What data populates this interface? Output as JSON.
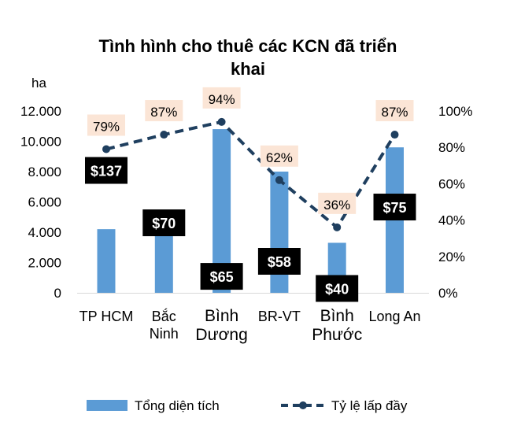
{
  "chart_data": {
    "type": "bar",
    "title_lines": [
      "Tình hình cho thuê các KCN đã triển",
      "khai"
    ],
    "ylabel_left": "ha",
    "categories": [
      {
        "lines": [
          "TP HCM"
        ],
        "big": false
      },
      {
        "lines": [
          "Bắc",
          "Ninh"
        ],
        "big": false
      },
      {
        "lines": [
          "Bình",
          "Dương"
        ],
        "big": true
      },
      {
        "lines": [
          "BR-VT"
        ],
        "big": false
      },
      {
        "lines": [
          "Bình",
          "Phước"
        ],
        "big": true
      },
      {
        "lines": [
          "Long An"
        ],
        "big": false
      }
    ],
    "series": [
      {
        "name": "Tổng diện tích",
        "type": "bar",
        "axis": "left",
        "color": "#5b9bd5",
        "values": [
          4200,
          4100,
          10800,
          8000,
          3300,
          9600
        ]
      },
      {
        "name": "Tỷ lệ lấp đầy",
        "type": "line",
        "axis": "right",
        "color": "#1f3f5f",
        "style": "dashed",
        "values": [
          0.79,
          0.87,
          0.94,
          0.62,
          0.36,
          0.87
        ]
      }
    ],
    "occupancy_labels": [
      "79%",
      "87%",
      "94%",
      "62%",
      "36%",
      "87%"
    ],
    "price_labels": [
      "$137",
      "$70",
      "$65",
      "$58",
      "$40",
      "$75"
    ],
    "price_values": [
      137,
      70,
      65,
      58,
      40,
      75
    ],
    "y_left": {
      "min": 0,
      "max": 12000,
      "ticks": [
        "0",
        "2.000",
        "4.000",
        "6.000",
        "8.000",
        "10.000",
        "12.000"
      ]
    },
    "y_right": {
      "min": 0,
      "max": 1,
      "ticks": [
        "0%",
        "20%",
        "40%",
        "60%",
        "80%",
        "100%"
      ]
    },
    "legend_position": "bottom",
    "colors": {
      "bar": "#5b9bd5",
      "line": "#1f3f5f",
      "pct_box": "#fbe5d6",
      "price_box": "#000000"
    }
  }
}
